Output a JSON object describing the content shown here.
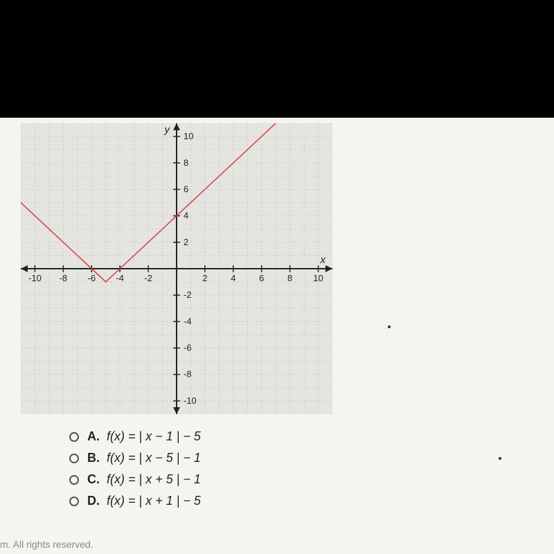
{
  "chart": {
    "type": "line",
    "background_color": "#e4e4e0",
    "grid_color": "#c9c9c5",
    "grid_dash": "2,3",
    "axis_color": "#222222",
    "axis_width": 2,
    "tick_label_color": "#222222",
    "tick_fontsize": 13,
    "xlabel": "x",
    "ylabel": "y",
    "xlim": [
      -11,
      11
    ],
    "ylim": [
      -11,
      11
    ],
    "xticks": [
      -10,
      -8,
      -6,
      -4,
      -2,
      2,
      4,
      6,
      8,
      10
    ],
    "yticks": [
      -10,
      -8,
      -6,
      -4,
      -2,
      2,
      4,
      6,
      8,
      10
    ],
    "series": {
      "color": "#e23a3a",
      "width": 1.5,
      "points": [
        [
          -11,
          5
        ],
        [
          -5,
          -1
        ],
        [
          7,
          11
        ]
      ]
    }
  },
  "options": [
    {
      "letter": "A.",
      "expr": "f(x) = | x – 1 | − 5"
    },
    {
      "letter": "B.",
      "expr": "f(x) = | x – 5 | − 1"
    },
    {
      "letter": "C.",
      "expr": "f(x) = | x + 5 | − 1"
    },
    {
      "letter": "D.",
      "expr": "f(x) = | x + 1 | − 5"
    }
  ],
  "footer_text": "m. All rights reserved."
}
